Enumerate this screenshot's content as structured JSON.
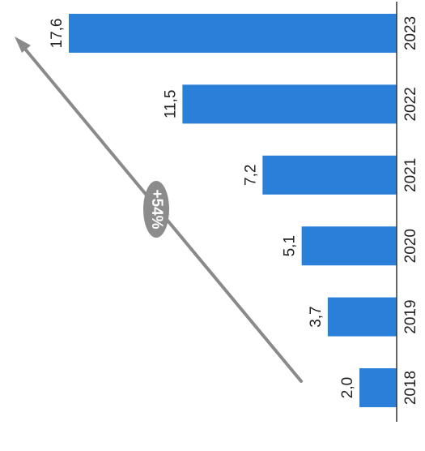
{
  "chart_data": {
    "type": "bar",
    "orientation": "rotated-90-clockwise",
    "categories": [
      "2018",
      "2019",
      "2020",
      "2021",
      "2022",
      "2023"
    ],
    "values": [
      2.0,
      3.7,
      5.1,
      7.2,
      11.5,
      17.6
    ],
    "value_labels": [
      "2,0",
      "3,7",
      "5,1",
      "7,2",
      "11,5",
      "17,6"
    ],
    "title": "",
    "xlabel": "",
    "ylabel": "",
    "ylim": [
      0,
      17.6
    ],
    "grid": false,
    "legend": "none",
    "annotation": {
      "label": "+54%",
      "type": "growth-arrow"
    },
    "colors": {
      "bar": "#2a80d8",
      "arrow": "#8a8a8a",
      "badge_fill": "#8c8c8c",
      "badge_text": "#ffffff",
      "axis": "#333333",
      "text": "#222222"
    }
  }
}
